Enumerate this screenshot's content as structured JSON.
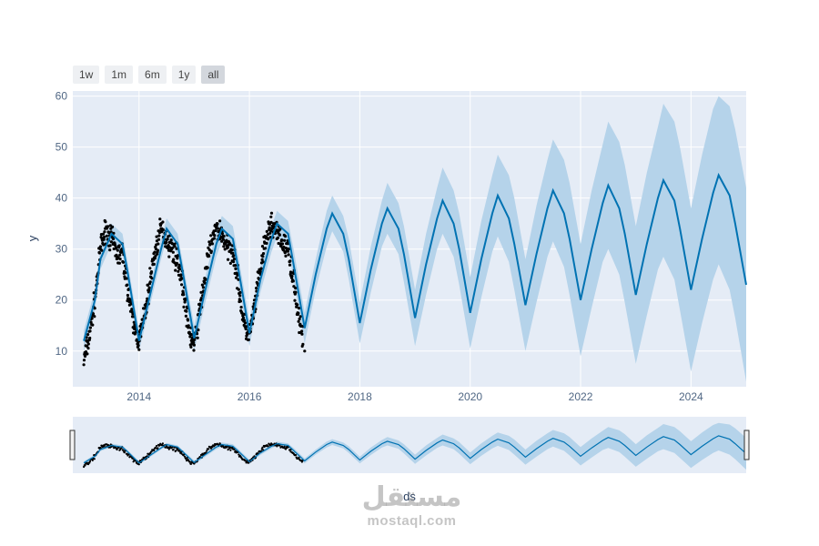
{
  "range_selector": {
    "buttons": [
      {
        "label": "1w",
        "active": false
      },
      {
        "label": "1m",
        "active": false
      },
      {
        "label": "6m",
        "active": false
      },
      {
        "label": "1y",
        "active": false
      },
      {
        "label": "all",
        "active": true
      }
    ]
  },
  "watermark": {
    "logo_text": "مستقل",
    "url_text": "mostaql.com"
  },
  "chart_data": {
    "type": "line",
    "title": "",
    "xlabel": "ds",
    "ylabel": "y",
    "x_range": [
      2012.8,
      2025.0
    ],
    "ylim": [
      3,
      61
    ],
    "x_ticks": [
      2014,
      2016,
      2018,
      2020,
      2022,
      2024
    ],
    "y_ticks": [
      10,
      20,
      30,
      40,
      50,
      60
    ],
    "grid": true,
    "rangeslider": true,
    "colors": {
      "forecast_line": "#0072B2",
      "uncertainty_band": "#b5d3ea",
      "observed_points": "#000000",
      "plot_background": "#e5ecf6"
    },
    "observed": {
      "x_start": 2013.0,
      "x_end": 2017.0,
      "points": [
        [
          2013.0,
          8
        ],
        [
          2013.1,
          13
        ],
        [
          2013.2,
          20
        ],
        [
          2013.3,
          30
        ],
        [
          2013.4,
          34
        ],
        [
          2013.5,
          32
        ],
        [
          2013.6,
          29
        ],
        [
          2013.7,
          29
        ],
        [
          2013.8,
          22
        ],
        [
          2013.9,
          15
        ],
        [
          2014.0,
          12
        ],
        [
          2014.1,
          17
        ],
        [
          2014.2,
          24
        ],
        [
          2014.3,
          30
        ],
        [
          2014.4,
          34
        ],
        [
          2014.5,
          32
        ],
        [
          2014.6,
          30
        ],
        [
          2014.7,
          28
        ],
        [
          2014.8,
          22
        ],
        [
          2014.9,
          14
        ],
        [
          2015.0,
          11
        ],
        [
          2015.1,
          18
        ],
        [
          2015.2,
          25
        ],
        [
          2015.3,
          31
        ],
        [
          2015.4,
          34
        ],
        [
          2015.5,
          33
        ],
        [
          2015.6,
          30
        ],
        [
          2015.7,
          30
        ],
        [
          2015.8,
          23
        ],
        [
          2015.9,
          15
        ],
        [
          2016.0,
          13
        ],
        [
          2016.1,
          19
        ],
        [
          2016.2,
          26
        ],
        [
          2016.3,
          32
        ],
        [
          2016.4,
          35
        ],
        [
          2016.5,
          33
        ],
        [
          2016.6,
          31
        ],
        [
          2016.7,
          30
        ],
        [
          2016.8,
          24
        ],
        [
          2016.9,
          16
        ],
        [
          2017.0,
          10
        ]
      ],
      "noise": 3.5
    },
    "forecast": {
      "x": [
        2013.0,
        2013.2,
        2013.3,
        2013.5,
        2013.7,
        2013.8,
        2014.0,
        2014.2,
        2014.4,
        2014.5,
        2014.7,
        2014.8,
        2015.0,
        2015.2,
        2015.4,
        2015.5,
        2015.7,
        2015.8,
        2016.0,
        2016.2,
        2016.4,
        2016.5,
        2016.7,
        2016.8,
        2017.0,
        2017.2,
        2017.4,
        2017.5,
        2017.7,
        2017.8,
        2018.0,
        2018.2,
        2018.4,
        2018.5,
        2018.7,
        2018.8,
        2019.0,
        2019.2,
        2019.4,
        2019.5,
        2019.7,
        2019.8,
        2020.0,
        2020.2,
        2020.4,
        2020.5,
        2020.7,
        2020.8,
        2021.0,
        2021.2,
        2021.4,
        2021.5,
        2021.7,
        2021.8,
        2022.0,
        2022.2,
        2022.4,
        2022.5,
        2022.7,
        2022.8,
        2023.0,
        2023.2,
        2023.4,
        2023.5,
        2023.7,
        2023.8,
        2024.0,
        2024.2,
        2024.4,
        2024.5,
        2024.7,
        2024.8,
        2025.0
      ],
      "y": [
        12.0,
        20.0,
        28.0,
        33.0,
        31.0,
        25.0,
        12.0,
        21.0,
        30.0,
        34.0,
        31.0,
        25.0,
        12.5,
        22.0,
        31.0,
        34.0,
        32.0,
        26.0,
        13.5,
        24.0,
        32.0,
        35.0,
        33.0,
        27.0,
        14.5,
        25.0,
        34.0,
        37.0,
        33.0,
        28.0,
        15.5,
        26.0,
        35.0,
        38.0,
        34.0,
        29.0,
        16.5,
        27.0,
        36.0,
        39.5,
        35.0,
        30.0,
        17.5,
        28.0,
        37.0,
        40.5,
        36.0,
        31.0,
        19.0,
        29.0,
        38.0,
        41.5,
        37.0,
        32.0,
        20.0,
        30.0,
        39.0,
        42.5,
        38.0,
        33.0,
        21.0,
        31.0,
        40.0,
        43.5,
        39.5,
        34.0,
        22.0,
        32.0,
        41.0,
        44.5,
        40.5,
        35.0,
        23.0
      ],
      "lower": [
        10.0,
        18.0,
        26.0,
        31.0,
        29.0,
        23.0,
        10.0,
        19.0,
        28.0,
        32.0,
        29.0,
        23.0,
        10.0,
        19.5,
        28.5,
        31.5,
        29.5,
        23.5,
        11.0,
        21.5,
        29.5,
        32.5,
        30.5,
        24.0,
        11.5,
        22.0,
        30.5,
        33.5,
        29.5,
        24.0,
        11.5,
        21.5,
        30.5,
        33.0,
        29.0,
        23.5,
        11.0,
        21.0,
        30.0,
        33.0,
        28.5,
        23.0,
        10.5,
        20.5,
        29.5,
        32.5,
        27.5,
        22.0,
        10.0,
        19.5,
        28.5,
        31.5,
        26.5,
        21.0,
        9.0,
        18.5,
        27.5,
        30.0,
        25.0,
        19.5,
        7.5,
        17.0,
        26.0,
        28.5,
        24.0,
        18.0,
        6.0,
        15.5,
        24.0,
        27.0,
        22.0,
        16.5,
        4.0
      ],
      "upper": [
        14.0,
        22.0,
        30.0,
        35.0,
        33.0,
        27.0,
        14.0,
        23.0,
        32.0,
        36.0,
        33.0,
        27.0,
        15.0,
        24.5,
        33.5,
        36.5,
        34.5,
        28.5,
        16.0,
        26.5,
        34.5,
        37.5,
        35.5,
        30.0,
        17.5,
        28.0,
        37.5,
        40.5,
        36.5,
        32.0,
        19.5,
        30.5,
        39.5,
        43.0,
        39.0,
        34.5,
        22.0,
        33.0,
        42.0,
        46.0,
        41.5,
        37.0,
        24.5,
        35.5,
        44.5,
        48.5,
        44.5,
        40.0,
        28.0,
        38.5,
        47.5,
        51.5,
        47.5,
        43.0,
        31.0,
        41.5,
        50.5,
        55.0,
        51.0,
        46.5,
        34.5,
        45.0,
        54.0,
        58.5,
        55.0,
        50.0,
        38.0,
        48.5,
        57.5,
        60.0,
        58.0,
        53.5,
        42.0
      ]
    }
  }
}
